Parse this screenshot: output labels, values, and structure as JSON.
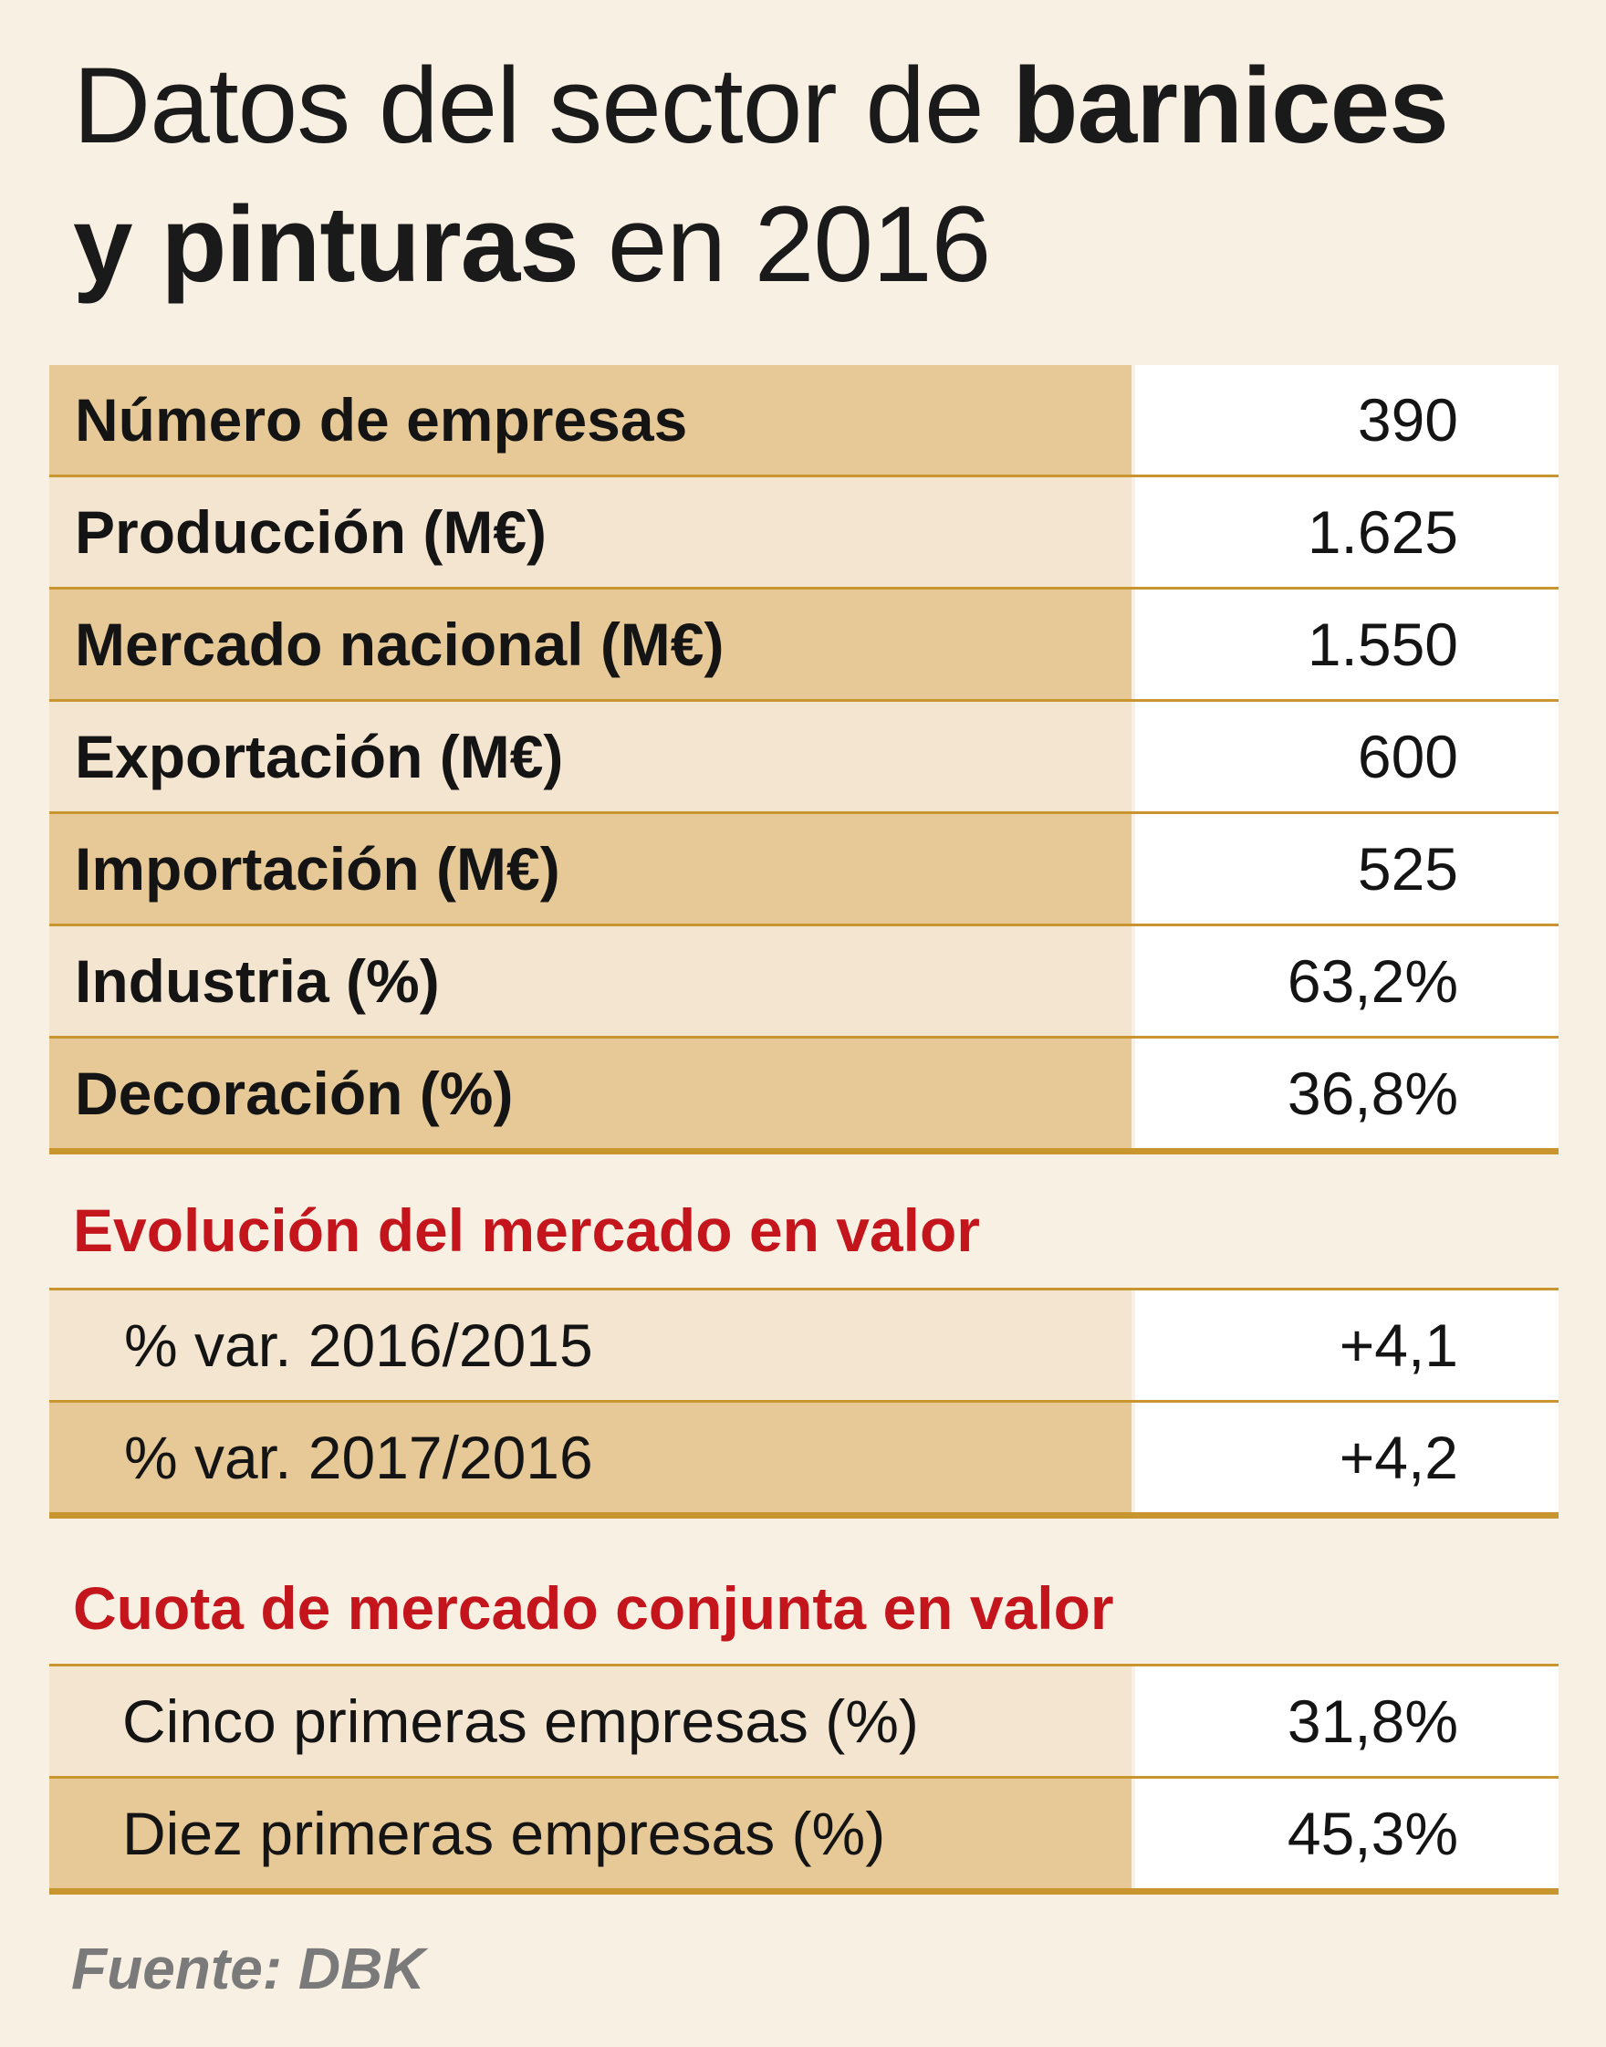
{
  "title": {
    "part1": "Datos del sector de ",
    "bold1": "barnices",
    "bold2": "y pinturas",
    "part2": " en 2016"
  },
  "main_table": [
    {
      "label": "Número de empresas",
      "value": "390"
    },
    {
      "label": "Producción (M€)",
      "value": "1.625"
    },
    {
      "label": "Mercado nacional (M€)",
      "value": "1.550"
    },
    {
      "label": "Exportación (M€)",
      "value": "600"
    },
    {
      "label": "Importación (M€)",
      "value": "525"
    },
    {
      "label": "Industria (%)",
      "value": "63,2%"
    },
    {
      "label": "Decoración (%)",
      "value": "36,8%"
    }
  ],
  "evolution": {
    "heading": "Evolución del mercado en valor",
    "rows": [
      {
        "label": "% var. 2016/2015",
        "value": "+4,1"
      },
      {
        "label": "% var. 2017/2016",
        "value": "+4,2"
      }
    ]
  },
  "share": {
    "heading": "Cuota de mercado conjunta en valor",
    "rows": [
      {
        "label": "Cinco primeras empresas (%)",
        "value": "31,8%"
      },
      {
        "label": "Diez primeras empresas (%)",
        "value": "45,3%"
      }
    ]
  },
  "source": "Fuente: DBK",
  "colors": {
    "background": "#f9f0e4",
    "band_dark": "#e6c996",
    "band_light": "#f4e5d0",
    "rule": "#c9952e",
    "heading_red": "#c4141c",
    "source_gray": "#7a7a7a"
  }
}
